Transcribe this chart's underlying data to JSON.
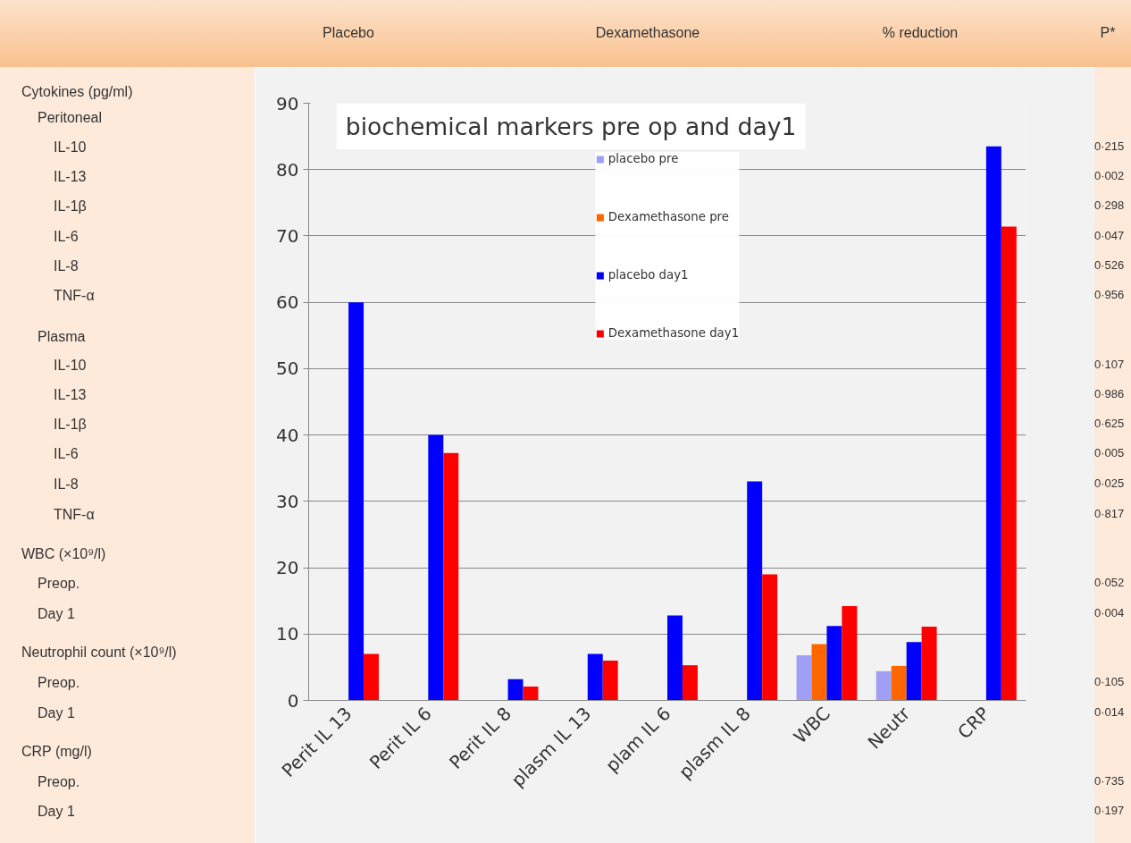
{
  "chart_data": {
    "type": "bar",
    "title": "biochemical markers pre op and day1",
    "categories": [
      "Perit IL 13",
      "Perit IL 6",
      "Perit IL 8",
      "plasm IL 13",
      "plam IL 6",
      "plasm IL 8",
      "WBC",
      "Neutr",
      "CRP"
    ],
    "series": [
      {
        "name": "placebo pre",
        "color": "#9f9ff5",
        "values": [
          null,
          null,
          null,
          null,
          null,
          null,
          6.8,
          4.4,
          null
        ]
      },
      {
        "name": "Dexamethasone pre",
        "color": "#ff6600",
        "values": [
          null,
          null,
          null,
          null,
          null,
          null,
          8.5,
          5.2,
          null
        ]
      },
      {
        "name": "placebo day1",
        "color": "#0000ff",
        "values": [
          60,
          40,
          3.2,
          7.0,
          12.8,
          33,
          11.2,
          8.8,
          83.5
        ]
      },
      {
        "name": "Dexamethasone day1",
        "color": "#ff0000",
        "values": [
          7.0,
          37.3,
          2.1,
          6.0,
          5.3,
          19,
          14.2,
          11.1,
          71.4
        ]
      }
    ],
    "ylim": [
      0,
      90
    ],
    "yticks": [
      0,
      10,
      20,
      30,
      40,
      50,
      60,
      70,
      80,
      90
    ],
    "grid": "y",
    "legend": "top",
    "annotations": [
      "Placebo",
      "Dexamethasone",
      "% reduction",
      "P*",
      "Cytokines (pg/ml)",
      "Peritoneal",
      "IL-10",
      "IL-13",
      "IL-1β",
      "IL-6",
      "IL-8",
      "TNF-α",
      "Plasma",
      "IL-10",
      "IL-13",
      "IL-1β",
      "IL-6",
      "IL-8",
      "TNF-α",
      "WBC (×10⁹/l)",
      "Preop.",
      "Day 1",
      "Neutrophil count (×10⁹/l)",
      "Preop.",
      "Day 1",
      "CRP (mg/l)",
      "Preop.",
      "Day 1",
      "0·215",
      "0·002",
      "0·298",
      "0·047",
      "0·526",
      "0·956",
      "0·107",
      "0·986",
      "0·625",
      "0·005",
      "0·025",
      "0·817",
      "0·052",
      "0·004",
      "0·105",
      "0·014",
      "0·735",
      "0·197"
    ]
  }
}
